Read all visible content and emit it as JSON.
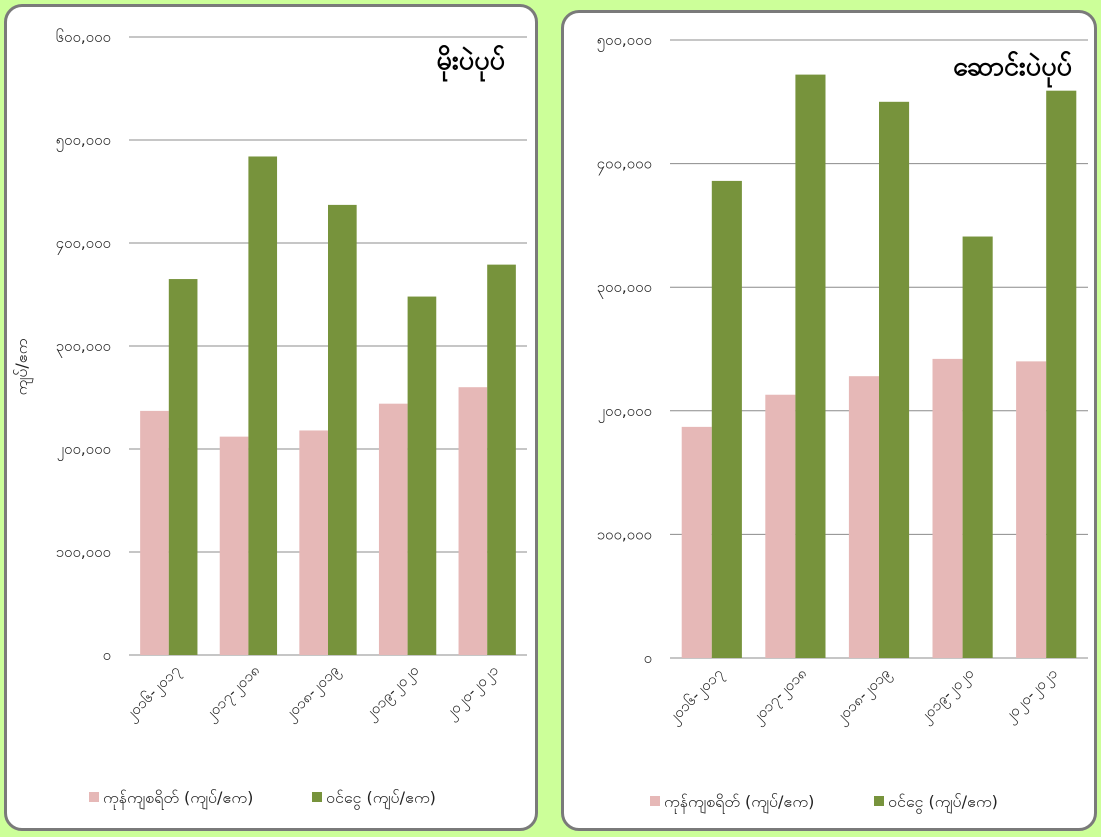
{
  "colors": {
    "series_0": "#e6b8b7",
    "series_1": "#77933c"
  },
  "chart_data": [
    {
      "type": "bar",
      "title": "မိုးပဲပုပ်",
      "ylabel": "ကျပ်/ဧက",
      "ylim": [
        0,
        600000
      ],
      "y_ticks": [
        0,
        100000,
        200000,
        300000,
        400000,
        500000,
        600000
      ],
      "y_tick_labels": [
        "၀",
        "၁၀၀,၀၀၀",
        "၂၀၀,၀၀၀",
        "၃၀၀,၀၀၀",
        "၄၀၀,၀၀၀",
        "၅၀၀,၀၀၀",
        "၆၀၀,၀၀၀"
      ],
      "categories": [
        "၂၀၁၆-၂၀၁၇",
        "၂၀၁၇-၂၀၁၈",
        "၂၀၁၈-၂၀၁၉",
        "၂၀၁၉-၂၀၂၀",
        "၂၀၂၀-၂၀၂၁"
      ],
      "series": [
        {
          "name": "ကုန်ကျစရိတ် (ကျပ်/ဧက)",
          "values": [
            237000,
            212000,
            218000,
            244000,
            260000
          ]
        },
        {
          "name": "ဝင်ငွေ (ကျပ်/ဧက)",
          "values": [
            365000,
            484000,
            437000,
            348000,
            379000
          ]
        }
      ],
      "grid": true,
      "legend": "bottom"
    },
    {
      "type": "bar",
      "title": "ဆောင်းပဲပုပ်",
      "ylabel": "",
      "ylim": [
        0,
        500000
      ],
      "y_ticks": [
        0,
        100000,
        200000,
        300000,
        400000,
        500000
      ],
      "y_tick_labels": [
        "၀",
        "၁၀၀,၀၀၀",
        "၂၀၀,၀၀၀",
        "၃၀၀,၀၀၀",
        "၄၀၀,၀၀၀",
        "၅၀၀,၀၀၀"
      ],
      "categories": [
        "၂၀၁၆-၂၀၁၇",
        "၂၀၁၇-၂၀၁၈",
        "၂၀၁၈-၂၀၁၉",
        "၂၀၁၉-၂၀၂၀",
        "၂၀၂၀-၂၀၂၁"
      ],
      "series": [
        {
          "name": "ကုန်ကျစရိတ် (ကျပ်/ဧက)",
          "values": [
            187000,
            213000,
            228000,
            242000,
            240000
          ]
        },
        {
          "name": "ဝင်ငွေ (ကျပ်/ဧက)",
          "values": [
            386000,
            472000,
            450000,
            341000,
            459000
          ]
        }
      ],
      "grid": true,
      "legend": "bottom"
    }
  ]
}
